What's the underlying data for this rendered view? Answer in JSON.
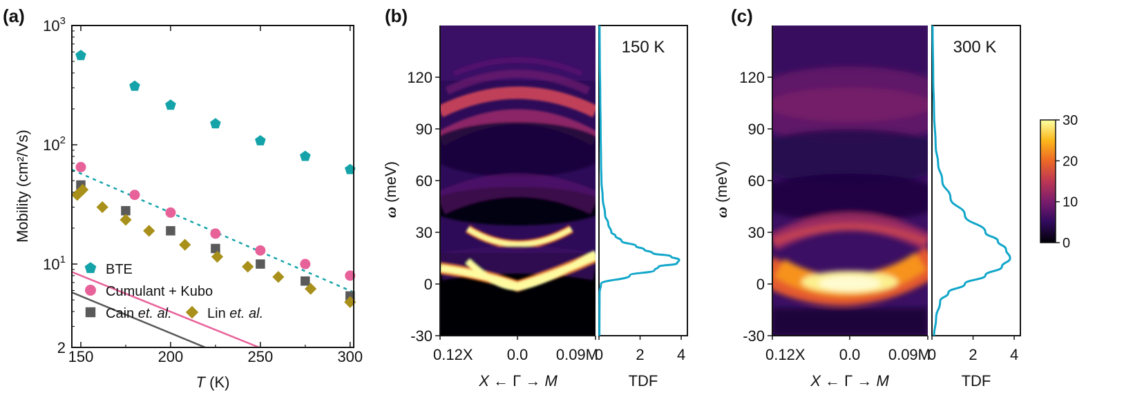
{
  "chart_data": [
    {
      "panel": "(a)",
      "type": "scatter",
      "xlabel_var": "T",
      "xlabel_unit": " (K)",
      "ylabel": "Mobility (cm²/Vs)",
      "yscale": "log",
      "xlim": [
        145,
        302
      ],
      "ylim": [
        2,
        1000
      ],
      "xticks": [
        150,
        200,
        250,
        300
      ],
      "yticks": [
        {
          "value": 1000,
          "base": "10",
          "exp": "3"
        },
        {
          "value": 100,
          "base": "10",
          "exp": "2"
        },
        {
          "value": 10,
          "base": "10",
          "exp": "1"
        },
        {
          "value": 2,
          "base": "2",
          "exp": ""
        }
      ],
      "series": [
        {
          "name": "BTE",
          "marker": "pentagon",
          "color": "#14a3a8",
          "line": "dotted",
          "x": [
            150,
            180,
            200,
            225,
            250,
            275,
            300
          ],
          "y": [
            560,
            310,
            215,
            150,
            108,
            80,
            62
          ],
          "fit": {
            "a": 2.7403,
            "b": -0.006546
          }
        },
        {
          "name": "Cumulant + Kubo",
          "marker": "circle",
          "color": "#e8629a",
          "line": "solid",
          "x": [
            150,
            180,
            200,
            225,
            250,
            275,
            300
          ],
          "y": [
            65,
            38,
            27,
            18,
            13,
            10,
            8
          ],
          "fit": {
            "a": 1.8128,
            "b": -0.006064
          }
        },
        {
          "name": "Cain et. al.",
          "name_main": "Cain ",
          "name_italic": "et. al.",
          "marker": "square",
          "color": "#5a5a5a",
          "line": "solid",
          "x": [
            150,
            175,
            200,
            225,
            250,
            275,
            300
          ],
          "y": [
            46,
            28,
            19,
            13.5,
            10,
            7.2,
            5.4
          ],
          "fit": {
            "a": 1.6628,
            "b": -0.006211
          }
        },
        {
          "name": "Lin et. al.",
          "name_main": "Lin ",
          "name_italic": "et. al.",
          "marker": "diamond",
          "color": "#a8901a",
          "line": "none",
          "x": [
            148,
            151,
            162,
            175,
            188,
            208,
            226,
            243,
            260,
            278,
            300
          ],
          "y": [
            38,
            42,
            30,
            23.5,
            19,
            14.5,
            11.5,
            9.5,
            7.8,
            6.2,
            4.8
          ]
        }
      ]
    },
    {
      "panel": "(b)",
      "type": "heatmap",
      "temperature": "150 K",
      "ylabel_var": "ω",
      "ylabel_unit": " (meV)",
      "ylim": [
        -30,
        150
      ],
      "yticks": [
        -30,
        0,
        30,
        60,
        90,
        120
      ],
      "xticks": [
        "0.12X",
        "0.0",
        "0.09M"
      ],
      "xlabel": {
        "left": "X",
        "mid": " ← Γ → ",
        "right": "M"
      },
      "bands": [
        {
          "omega": 3,
          "width": 4,
          "intensity": 30
        },
        {
          "omega": 28,
          "width": 3,
          "intensity": 30
        },
        {
          "omega": 70,
          "width": 10,
          "intensity": 2
        },
        {
          "omega": 104,
          "width": 6,
          "intensity": 14
        },
        {
          "omega": 122,
          "width": 5,
          "intensity": 10
        }
      ],
      "tdf": {
        "xlabel": "TDF",
        "xticks": [
          0,
          2,
          4
        ],
        "xlim": [
          0,
          4.3
        ],
        "omega": [
          -30,
          -5,
          0,
          5,
          8,
          10,
          12,
          14,
          16,
          18,
          20,
          22,
          25,
          28,
          30,
          35,
          40,
          50,
          60,
          70,
          90,
          110,
          130,
          150
        ],
        "values": [
          0.02,
          0.03,
          0.1,
          1.5,
          2.7,
          2.9,
          3.8,
          3.9,
          3.5,
          2.6,
          2.2,
          1.8,
          1.1,
          0.8,
          0.6,
          0.45,
          0.3,
          0.18,
          0.12,
          0.1,
          0.08,
          0.06,
          0.04,
          0.03
        ]
      }
    },
    {
      "panel": "(c)",
      "type": "heatmap",
      "temperature": "300 K",
      "ylabel_var": "ω",
      "ylabel_unit": " (meV)",
      "ylim": [
        -30,
        150
      ],
      "yticks": [
        -30,
        0,
        30,
        60,
        90,
        120
      ],
      "xticks": [
        "0.12X",
        "0.0",
        "0.09M"
      ],
      "xlabel": {
        "left": "X",
        "mid": " ← Γ → ",
        "right": "M"
      },
      "bands": [
        {
          "omega": 5,
          "width": 9,
          "intensity": 28
        },
        {
          "omega": 30,
          "width": 9,
          "intensity": 12
        },
        {
          "omega": 100,
          "width": 18,
          "intensity": 7
        }
      ],
      "tdf": {
        "xlabel": "TDF",
        "xticks": [
          0,
          2,
          4
        ],
        "xlim": [
          0,
          4.3
        ],
        "omega": [
          -30,
          -20,
          -10,
          -5,
          0,
          5,
          10,
          15,
          20,
          25,
          30,
          40,
          50,
          60,
          70,
          80,
          100,
          120,
          150
        ],
        "values": [
          0.1,
          0.2,
          0.4,
          0.8,
          1.6,
          2.6,
          3.4,
          3.8,
          3.6,
          3.2,
          2.6,
          1.6,
          0.9,
          0.5,
          0.3,
          0.18,
          0.1,
          0.06,
          0.03
        ]
      }
    }
  ],
  "colorbar": {
    "min": 0,
    "max": 30,
    "ticks": [
      0,
      10,
      20,
      30
    ],
    "colors": [
      "#000004",
      "#320a5e",
      "#781c6d",
      "#bc3754",
      "#ed6925",
      "#fbb61a",
      "#fcffa4"
    ]
  }
}
